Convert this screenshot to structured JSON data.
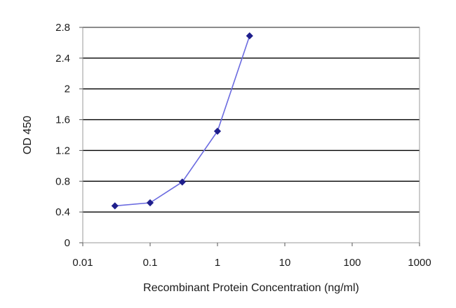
{
  "chart_data": {
    "type": "line",
    "xlabel": "Recombinant Protein Concentration (ng/ml)",
    "ylabel": "OD 450",
    "x_scale": "log",
    "xlim": [
      0.01,
      1000
    ],
    "ylim": [
      0,
      2.8
    ],
    "x_ticks": [
      "0.01",
      "0.1",
      "1",
      "10",
      "100",
      "1000"
    ],
    "y_ticks": [
      "0",
      "0.4",
      "0.8",
      "1.2",
      "1.6",
      "2",
      "2.4",
      "2.8"
    ],
    "grid": "horizontal",
    "series": [
      {
        "x": [
          0.03,
          0.1,
          0.3,
          1,
          3
        ],
        "y": [
          0.48,
          0.52,
          0.79,
          1.45,
          2.69
        ]
      }
    ],
    "colors": {
      "line": "#6b6be0",
      "marker": "#1f1f8c",
      "grid": "#000000",
      "frame": "#9a9a9a"
    }
  }
}
